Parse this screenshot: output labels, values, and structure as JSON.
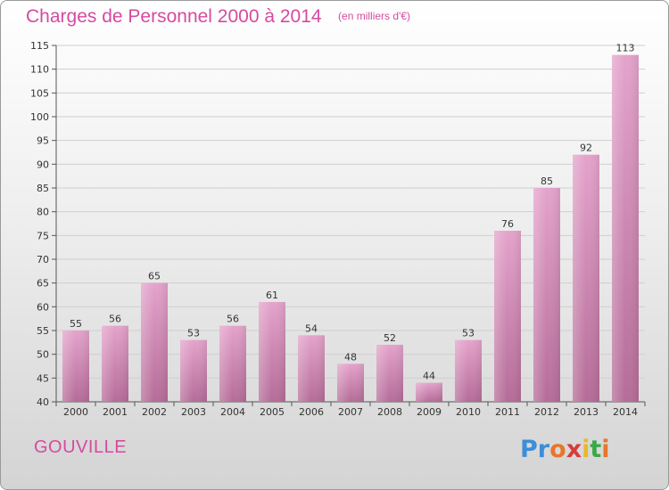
{
  "title": "Charges de Personnel 2000 à 2014",
  "subtitle": "(en milliers d'€)",
  "region": "GOUVILLE",
  "logo": {
    "text": "Proxiti",
    "colors": [
      "#3a8fd8",
      "#3a8fd8",
      "#e8762a",
      "#d83a3a",
      "#e8b82a",
      "#3aa84a",
      "#e8762a"
    ]
  },
  "colors": {
    "bar": "#d97fb4",
    "title": "#d64aa0"
  },
  "chart_data": {
    "type": "bar",
    "categories": [
      "2000",
      "2001",
      "2002",
      "2003",
      "2004",
      "2005",
      "2006",
      "2007",
      "2008",
      "2009",
      "2010",
      "2011",
      "2012",
      "2013",
      "2014"
    ],
    "values": [
      55,
      56,
      65,
      53,
      56,
      61,
      54,
      48,
      52,
      44,
      53,
      76,
      85,
      92,
      113
    ],
    "ylim": [
      40,
      115
    ],
    "yticks": [
      40,
      45,
      50,
      55,
      60,
      65,
      70,
      75,
      80,
      85,
      90,
      95,
      100,
      105,
      110,
      115
    ],
    "grid": true
  }
}
